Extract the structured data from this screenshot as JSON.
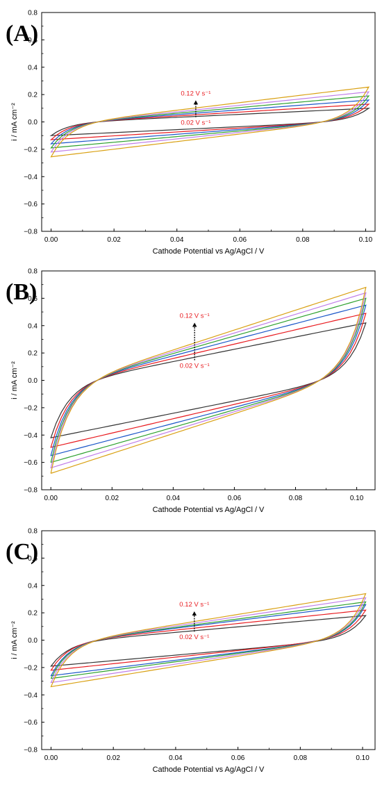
{
  "chart_data": [
    {
      "type": "line",
      "panel_label": "(A)",
      "xlabel": "Cathode Potential vs Ag/AgCl / V",
      "ylabel": "i / mA cm⁻²",
      "xlim": [
        -0.003,
        0.103
      ],
      "ylim": [
        -0.8,
        0.8
      ],
      "xticks": [
        0.0,
        0.02,
        0.04,
        0.06,
        0.08,
        0.1
      ],
      "xtick_labels": [
        "0.00",
        "0.02",
        "0.04",
        "0.06",
        "0.08",
        "0.10"
      ],
      "yticks": [
        -0.8,
        -0.6,
        -0.4,
        -0.2,
        0.0,
        0.2,
        0.4,
        0.6,
        0.8
      ],
      "ytick_labels": [
        "−0.8",
        "−0.6",
        "−0.4",
        "−0.2",
        "0.0",
        "0.2",
        "0.4",
        "0.6",
        "0.8"
      ],
      "xmax_cv": 0.101,
      "annotations": {
        "top": "0.12 V s⁻¹",
        "bottom": "0.02 V s⁻¹",
        "arrow_x": 0.046
      },
      "series": [
        {
          "color": "#333333",
          "values": [
            -0.1,
            0.1
          ]
        },
        {
          "color": "#e8191e",
          "values": [
            -0.13,
            0.13
          ]
        },
        {
          "color": "#1a56c8",
          "values": [
            -0.16,
            0.16
          ]
        },
        {
          "color": "#2ca02c",
          "values": [
            -0.19,
            0.19
          ]
        },
        {
          "color": "#c07ee8",
          "values": [
            -0.22,
            0.22
          ]
        },
        {
          "color": "#d9a012",
          "values": [
            -0.255,
            0.255
          ]
        }
      ]
    },
    {
      "type": "line",
      "panel_label": "(B)",
      "xlabel": "Cathode Potential vs Ag/AgCl / V",
      "ylabel": "i / mA cm⁻²",
      "xlim": [
        -0.003,
        0.106
      ],
      "ylim": [
        -0.8,
        0.8
      ],
      "xticks": [
        0.0,
        0.02,
        0.04,
        0.06,
        0.08,
        0.1
      ],
      "xtick_labels": [
        "0.00",
        "0.02",
        "0.04",
        "0.06",
        "0.08",
        "0.10"
      ],
      "yticks": [
        -0.8,
        -0.6,
        -0.4,
        -0.2,
        0.0,
        0.2,
        0.4,
        0.6,
        0.8
      ],
      "ytick_labels": [
        "−0.8",
        "−0.6",
        "−0.4",
        "−0.2",
        "0.0",
        "0.2",
        "0.4",
        "0.6",
        "0.8"
      ],
      "xmax_cv": 0.103,
      "annotations": {
        "top": "0.12 V s⁻¹",
        "bottom": "0.02 V s⁻¹",
        "arrow_x": 0.047
      },
      "series": [
        {
          "color": "#333333",
          "values": [
            -0.42,
            0.42
          ]
        },
        {
          "color": "#e8191e",
          "values": [
            -0.49,
            0.49
          ]
        },
        {
          "color": "#1a56c8",
          "values": [
            -0.55,
            0.55
          ]
        },
        {
          "color": "#2ca02c",
          "values": [
            -0.6,
            0.6
          ]
        },
        {
          "color": "#c07ee8",
          "values": [
            -0.64,
            0.64
          ]
        },
        {
          "color": "#d9a012",
          "values": [
            -0.68,
            0.68
          ]
        }
      ]
    },
    {
      "type": "line",
      "panel_label": "(C)",
      "xlabel": "Cathode Potential vs Ag/AgCl / V",
      "ylabel": "i / mA cm⁻²",
      "xlim": [
        -0.003,
        0.104
      ],
      "ylim": [
        -0.8,
        0.8
      ],
      "xticks": [
        0.0,
        0.02,
        0.04,
        0.06,
        0.08,
        0.1
      ],
      "xtick_labels": [
        "0.00",
        "0.02",
        "0.04",
        "0.06",
        "0.08",
        "0.10"
      ],
      "yticks": [
        -0.8,
        -0.6,
        -0.4,
        -0.2,
        0.0,
        0.2,
        0.4,
        0.6,
        0.8
      ],
      "ytick_labels": [
        "−0.8",
        "−0.6",
        "−0.4",
        "−0.2",
        "0.0",
        "0.2",
        "0.4",
        "0.6",
        "0.8"
      ],
      "xmax_cv": 0.101,
      "annotations": {
        "top": "0.12 V s⁻¹",
        "bottom": "0.02 V s⁻¹",
        "arrow_x": 0.046
      },
      "series": [
        {
          "color": "#333333",
          "values": [
            -0.19,
            0.18
          ]
        },
        {
          "color": "#e8191e",
          "values": [
            -0.22,
            0.22
          ]
        },
        {
          "color": "#1a56c8",
          "values": [
            -0.26,
            0.26
          ]
        },
        {
          "color": "#2ca02c",
          "values": [
            -0.28,
            0.28
          ]
        },
        {
          "color": "#c07ee8",
          "values": [
            -0.31,
            0.31
          ]
        },
        {
          "color": "#d9a012",
          "values": [
            -0.34,
            0.34
          ]
        }
      ]
    }
  ]
}
